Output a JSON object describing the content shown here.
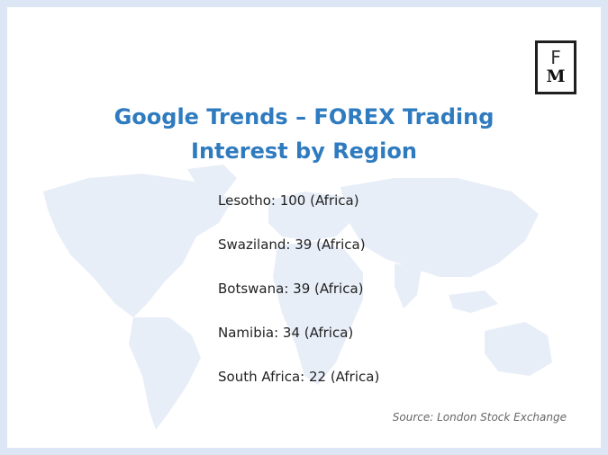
{
  "title_line1": "Google Trends – FOREX Trading",
  "title_line2": "Interest by Region",
  "items": [
    "Lesotho: 100 (Africa)",
    "Swaziland: 39 (Africa)",
    "Botswana: 39 (Africa)",
    "Namibia: 34 (Africa)",
    "South Africa: 22 (Africa)"
  ],
  "source": "Source: London Stock Exchange",
  "logo": {
    "top": "F",
    "bottom": "M"
  },
  "colors": {
    "title": "#2f7bbf",
    "map": "#e6edf8",
    "frame": "#dce6f4"
  }
}
